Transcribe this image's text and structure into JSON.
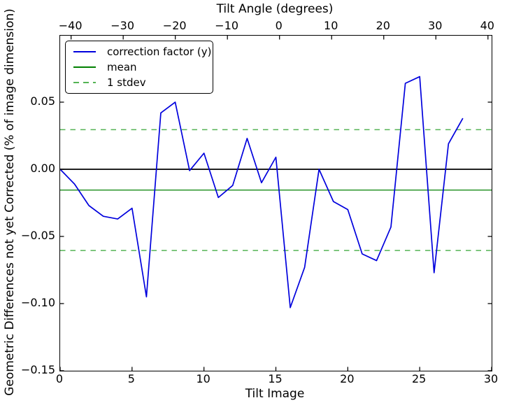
{
  "figure": {
    "background": "#ffffff",
    "top_axis": {
      "label": "Tilt Angle (degrees)",
      "ticks": [
        {
          "label": "−40",
          "value": -40
        },
        {
          "label": "−30",
          "value": -30
        },
        {
          "label": "−20",
          "value": -20
        },
        {
          "label": "−10",
          "value": -10
        },
        {
          "label": "0",
          "value": 0
        },
        {
          "label": "10",
          "value": 10
        },
        {
          "label": "20",
          "value": 20
        },
        {
          "label": "30",
          "value": 30
        },
        {
          "label": "40",
          "value": 40
        }
      ]
    },
    "bottom_axis": {
      "label": "Tilt Image",
      "ticks": [
        {
          "label": "0",
          "value": 0
        },
        {
          "label": "5",
          "value": 5
        },
        {
          "label": "10",
          "value": 10
        },
        {
          "label": "15",
          "value": 15
        },
        {
          "label": "20",
          "value": 20
        },
        {
          "label": "25",
          "value": 25
        },
        {
          "label": "30",
          "value": 30
        }
      ]
    },
    "y_axis": {
      "label": "Geometric Differences not yet Corrected (% of image dimension)",
      "ticks": [
        {
          "label": "0.05",
          "value": 0.05
        },
        {
          "label": "0.00",
          "value": 0.0
        },
        {
          "label": "−0.05",
          "value": -0.05
        },
        {
          "label": "−0.10",
          "value": -0.1
        },
        {
          "label": "−0.15",
          "value": -0.15
        }
      ]
    },
    "legend": [
      {
        "label": "correction factor (y)",
        "color": "#0000dd",
        "style": "solid"
      },
      {
        "label": "mean",
        "color": "#008000",
        "style": "solid"
      },
      {
        "label": "1 stdev",
        "color": "#55b455",
        "style": "dashed"
      }
    ]
  },
  "chart_data": {
    "type": "line",
    "title": "",
    "xlabel": "Tilt Image",
    "xlabel_top": "Tilt Angle (degrees)",
    "ylabel": "Geometric Differences not yet Corrected (% of image dimension)",
    "xlim": [
      0,
      30
    ],
    "top_xlim": [
      -42.1,
      40.7
    ],
    "ylim": [
      -0.15,
      0.0995
    ],
    "x_ticks_bottom": [
      0,
      5,
      10,
      15,
      20,
      25,
      30
    ],
    "x_ticks_top": [
      -40,
      -30,
      -20,
      -10,
      0,
      10,
      20,
      30,
      40
    ],
    "y_ticks": [
      0.05,
      0.0,
      -0.05,
      -0.1,
      -0.15
    ],
    "grid": false,
    "legend_position": "upper left",
    "series": [
      {
        "name": "correction factor (y)",
        "color": "#0000dd",
        "style": "solid",
        "x": [
          0,
          1,
          2,
          3,
          4,
          5,
          6,
          7,
          8,
          9,
          10,
          11,
          12,
          13,
          14,
          15,
          16,
          17,
          18,
          19,
          20,
          21,
          22,
          23,
          24,
          25,
          26,
          27,
          28
        ],
        "y": [
          0.0,
          -0.011,
          -0.027,
          -0.035,
          -0.037,
          -0.029,
          -0.095,
          0.042,
          0.05,
          -0.001,
          0.012,
          -0.021,
          -0.012,
          0.023,
          -0.01,
          0.009,
          -0.103,
          -0.073,
          0.0,
          -0.024,
          -0.03,
          -0.063,
          -0.068,
          -0.043,
          0.064,
          0.069,
          -0.077,
          0.019,
          0.038
        ]
      }
    ],
    "mean_line": {
      "name": "mean",
      "value": -0.0155,
      "color": "#008000",
      "style": "solid"
    },
    "stdev_lines": {
      "name": "1 stdev",
      "values": [
        0.0295,
        -0.0605
      ],
      "color": "#55b455",
      "style": "dashed"
    },
    "zero_line": {
      "value": 0.0,
      "color": "#000000",
      "style": "solid"
    }
  }
}
